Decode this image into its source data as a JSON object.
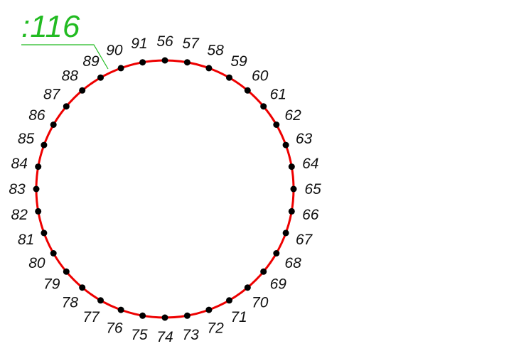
{
  "callout": {
    "label": ":116",
    "color": "#22bb22"
  },
  "ring": {
    "stroke_color": "#ee0000",
    "point_color": "#000000",
    "labels": [
      "56",
      "57",
      "58",
      "59",
      "60",
      "61",
      "62",
      "63",
      "64",
      "65",
      "66",
      "67",
      "68",
      "69",
      "70",
      "71",
      "72",
      "73",
      "74",
      "75",
      "76",
      "77",
      "78",
      "79",
      "80",
      "81",
      "82",
      "83",
      "84",
      "85",
      "86",
      "87",
      "88",
      "89",
      "90",
      "91"
    ]
  }
}
